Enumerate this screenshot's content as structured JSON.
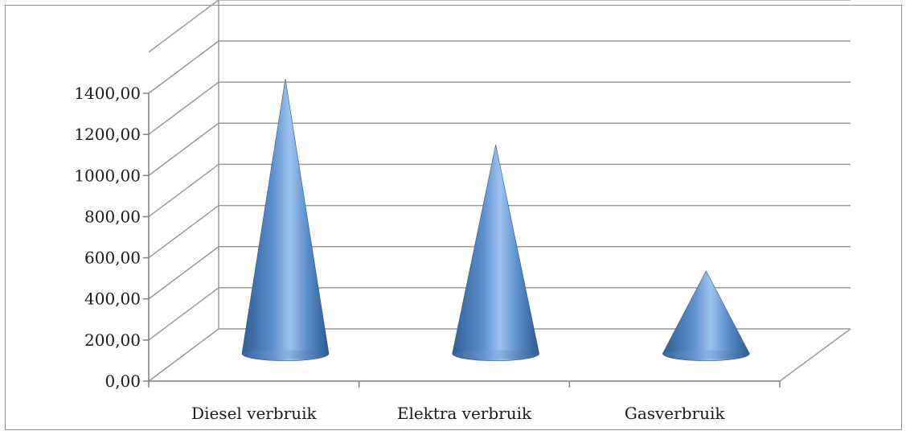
{
  "chart_data": {
    "type": "bar",
    "shape": "cone-3d",
    "title": "",
    "xlabel": "",
    "ylabel": "",
    "categories": [
      "Diesel verbruik",
      "Elektra verbruik",
      "Gasverbruik"
    ],
    "values": [
      1395,
      1060,
      420
    ],
    "ylim": [
      0,
      1400
    ],
    "yticks": [
      "0,00",
      "200,00",
      "400,00",
      "600,00",
      "800,00",
      "1000,00",
      "1200,00",
      "1400,00"
    ],
    "grid": true,
    "legend": "none",
    "colors": {
      "cone": "#4f81bd",
      "cone_light": "#9cc3ef",
      "cone_dark": "#2f5f92",
      "grid": "#999999",
      "axis": "#7f7f7f"
    }
  }
}
